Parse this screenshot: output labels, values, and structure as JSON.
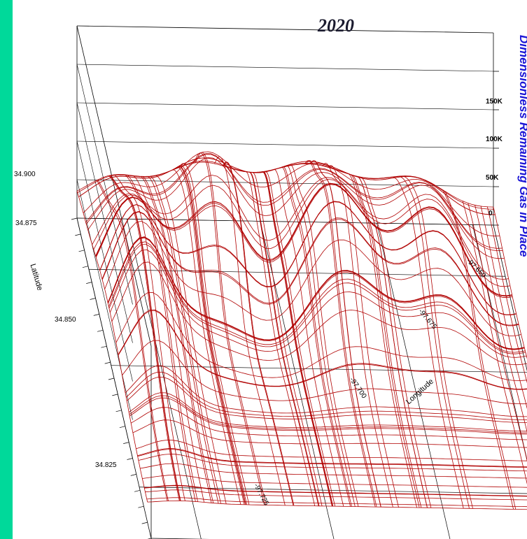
{
  "colors": {
    "background": "#00d99a",
    "surface": "#b00000",
    "title": "#1a1a2e",
    "z_axis_label": "#1a14d6"
  },
  "chart_data": {
    "type": "surface",
    "title": "2020",
    "z_axis_label": "Dimensionless Remaining Gas in Place",
    "x_axis_label": "Longitude",
    "y_axis_label": "Latitude",
    "x_ticks": [
      "-97.725",
      "-97.700",
      "-97.675",
      "-97.650"
    ],
    "y_ticks": [
      "34.900",
      "34.875",
      "34.850",
      "34.825"
    ],
    "z_ticks": [
      "0",
      "50K",
      "100K",
      "150K"
    ],
    "grid": true
  }
}
